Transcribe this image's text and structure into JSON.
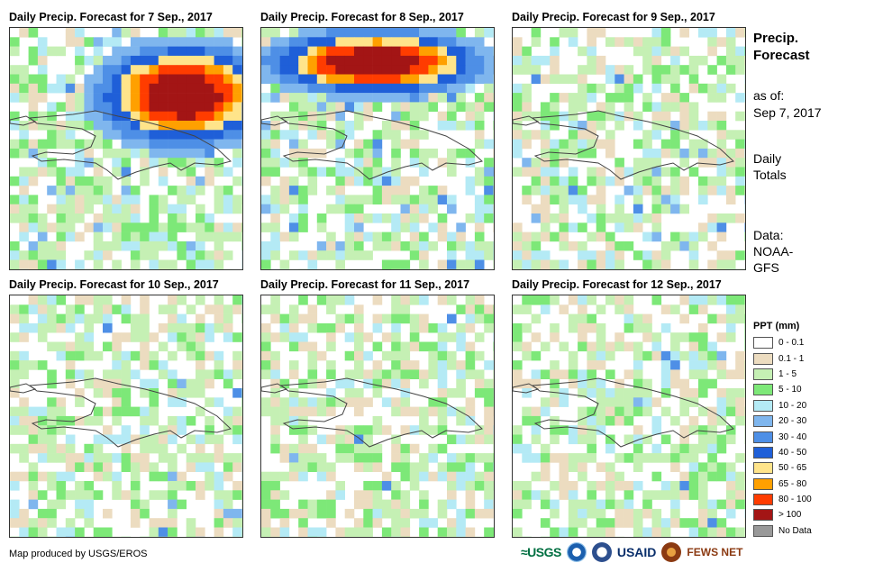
{
  "panels": [
    {
      "title": "Daily Precip. Forecast for 7 Sep., 2017",
      "intensity": 1.0,
      "north_band": 1.0
    },
    {
      "title": "Daily Precip. Forecast for 8 Sep., 2017",
      "intensity": 0.9,
      "north_band": 1.0
    },
    {
      "title": "Daily Precip. Forecast for 9 Sep., 2017",
      "intensity": 0.35,
      "north_band": 0.0
    },
    {
      "title": "Daily Precip. Forecast for 10 Sep., 2017",
      "intensity": 0.25,
      "north_band": 0.0
    },
    {
      "title": "Daily Precip. Forecast for 11 Sep., 2017",
      "intensity": 0.18,
      "north_band": 0.0
    },
    {
      "title": "Daily Precip. Forecast for 12 Sep., 2017",
      "intensity": 0.2,
      "north_band": 0.0
    }
  ],
  "side": {
    "heading_line1": "Precip.",
    "heading_line2": "Forecast",
    "asof_label": "as of:",
    "asof_date": "Sep 7, 2017",
    "totals_line1": "Daily",
    "totals_line2": "Totals",
    "data_line1": "Data:",
    "data_line2": "NOAA-",
    "data_line3": "GFS"
  },
  "legend": {
    "title": "PPT (mm)",
    "items": [
      {
        "label": "0 - 0.1",
        "color": "#ffffff"
      },
      {
        "label": "0.1 - 1",
        "color": "#ecdcc0"
      },
      {
        "label": "1 - 5",
        "color": "#c5f0b4"
      },
      {
        "label": "5 - 10",
        "color": "#7de878"
      },
      {
        "label": "10 - 20",
        "color": "#b4eaf5"
      },
      {
        "label": "20 - 30",
        "color": "#7fb6ee"
      },
      {
        "label": "30 - 40",
        "color": "#4e8fe6"
      },
      {
        "label": "40 - 50",
        "color": "#1f5fd8"
      },
      {
        "label": "50 - 65",
        "color": "#ffe48a"
      },
      {
        "label": "65 - 80",
        "color": "#ffa000"
      },
      {
        "label": "80 - 100",
        "color": "#ff3c00"
      },
      {
        "label": "> 100",
        "color": "#a31515"
      },
      {
        "label": "No Data",
        "color": "#999999"
      }
    ]
  },
  "credit": "Map produced by USGS/EROS",
  "logos": {
    "usgs": "≈USGS",
    "usaid": "USAID",
    "fews": "FEWS NET"
  }
}
